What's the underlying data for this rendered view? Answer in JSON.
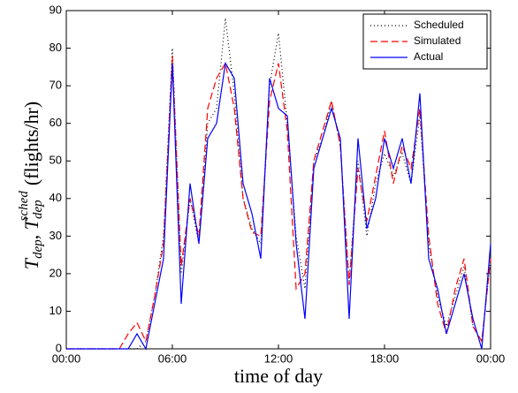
{
  "chart_data": {
    "type": "line",
    "xlabel": "time of day",
    "ylabel": {
      "symbol1": "T",
      "sub1": "dep",
      "sep": ", ",
      "symbol2": "T",
      "sub2": "dep",
      "sup2": "sched",
      "unit": "(flights/hr)"
    },
    "x": [
      0,
      0.5,
      1,
      1.5,
      2,
      2.5,
      3,
      3.5,
      4,
      4.5,
      5,
      5.5,
      6,
      6.5,
      7,
      7.5,
      8,
      8.5,
      9,
      9.5,
      10,
      10.5,
      11,
      11.5,
      12,
      12.5,
      13,
      13.5,
      14,
      14.5,
      15,
      15.5,
      16,
      16.5,
      17,
      17.5,
      18,
      18.5,
      19,
      19.5,
      20,
      20.5,
      21,
      21.5,
      22,
      22.5,
      23,
      23.5,
      24
    ],
    "series": [
      {
        "name": "Scheduled",
        "color": "#000000",
        "dash": "1,3",
        "values": [
          0,
          0,
          0,
          0,
          0,
          0,
          0,
          0,
          0,
          2,
          14,
          30,
          80,
          20,
          40,
          28,
          60,
          64,
          88,
          68,
          40,
          32,
          28,
          70,
          84,
          60,
          30,
          16,
          50,
          56,
          66,
          54,
          18,
          50,
          30,
          44,
          52,
          46,
          52,
          44,
          62,
          28,
          14,
          6,
          14,
          22,
          6,
          2,
          24
        ]
      },
      {
        "name": "Simulated",
        "color": "#ff0000",
        "dash": "8,4",
        "values": [
          0,
          0,
          0,
          0,
          0,
          0,
          0,
          4,
          7,
          2,
          14,
          28,
          78,
          22,
          40,
          30,
          64,
          72,
          76,
          64,
          40,
          31,
          30,
          66,
          76,
          58,
          16,
          20,
          50,
          58,
          66,
          54,
          17,
          48,
          34,
          46,
          58,
          44,
          54,
          48,
          64,
          30,
          12,
          4,
          16,
          24,
          6,
          2,
          24
        ]
      },
      {
        "name": "Actual",
        "color": "#0000ff",
        "dash": "",
        "values": [
          0,
          0,
          0,
          0,
          0,
          0,
          0,
          0,
          4,
          0,
          12,
          24,
          76,
          12,
          44,
          28,
          56,
          60,
          76,
          72,
          44,
          36,
          24,
          72,
          64,
          62,
          28,
          8,
          48,
          56,
          64,
          56,
          8,
          56,
          32,
          40,
          56,
          48,
          56,
          44,
          68,
          24,
          16,
          4,
          12,
          20,
          8,
          0,
          28
        ]
      }
    ],
    "xlim": [
      0,
      24
    ],
    "xticks": [
      {
        "value": 0,
        "label": "00:00"
      },
      {
        "value": 6,
        "label": "06:00"
      },
      {
        "value": 12,
        "label": "12:00"
      },
      {
        "value": 18,
        "label": "18:00"
      },
      {
        "value": 24,
        "label": "00:00"
      }
    ],
    "ylim": [
      0,
      90
    ],
    "yticks": [
      0,
      10,
      20,
      30,
      40,
      50,
      60,
      70,
      80,
      90
    ],
    "legend": "top-right"
  }
}
